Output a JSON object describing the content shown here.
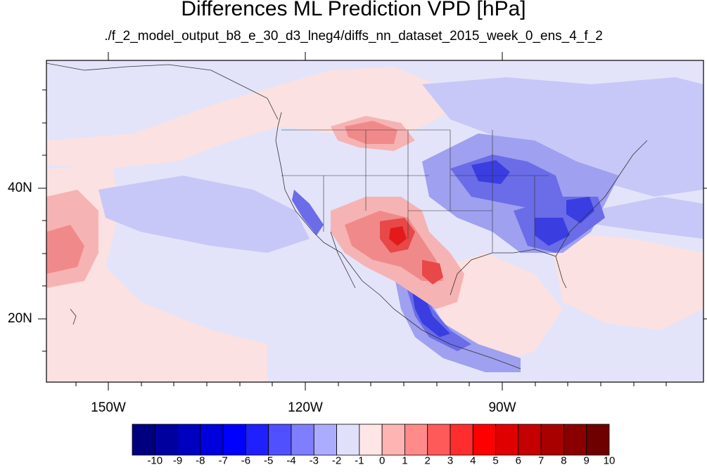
{
  "title": "Differences ML Prediction VPD [hPa]",
  "subtitle": "./f_2_model_output_b8_e_30_d3_lneg4/diffs_nn_dataset_2015_week_0_ens_4_f_2",
  "lon_labels": [
    "150W",
    "120W",
    "90W"
  ],
  "lat_labels": [
    "40N",
    "20N"
  ],
  "colorbar": {
    "labels": [
      "-10",
      "-9",
      "-8",
      "-7",
      "-6",
      "-5",
      "-4",
      "-3",
      "-2",
      "-1",
      "0",
      "1",
      "2",
      "3",
      "4",
      "5",
      "6",
      "7",
      "8",
      "9",
      "10"
    ],
    "colors": [
      "#00007f",
      "#00009f",
      "#0000bf",
      "#0000df",
      "#0000ff",
      "#2020ff",
      "#5050ff",
      "#7e7eff",
      "#acacff",
      "#e0e0fa",
      "#ffe6e6",
      "#ffb4b4",
      "#ff8a8a",
      "#ff5a5a",
      "#ff2e2e",
      "#ff0000",
      "#e00000",
      "#c40000",
      "#a80000",
      "#8a0000",
      "#6e0000"
    ]
  },
  "map_colors": {
    "background": "#e3e4fa",
    "light_red": "#fbe1e1",
    "mid_red": "#f6b3b3",
    "red": "#f08a8a",
    "deep_red": "#e84848",
    "strong_red": "#e31a1a",
    "light_blue": "#c7c8f7",
    "mid_blue": "#9fa0f0",
    "blue": "#6a6ce8",
    "deep_blue": "#3a3de0",
    "strong_blue": "#1c20d5",
    "coast": "#333333"
  }
}
